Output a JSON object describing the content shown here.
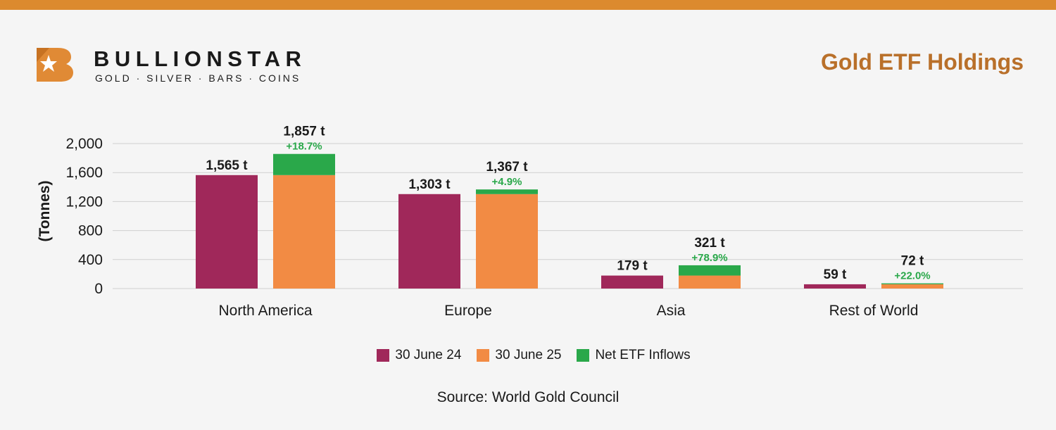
{
  "header": {
    "brand_name": "BULLIONSTAR",
    "brand_tagline": "GOLD · SILVER · BARS · COINS",
    "title": "Gold ETF Holdings"
  },
  "colors": {
    "top_bar": "#dc8a2e",
    "title": "#b9702a",
    "series_2024": "#a0285a",
    "series_2025": "#f28b44",
    "inflows": "#2aa84a",
    "pct_text": "#2aa84a"
  },
  "chart_data": {
    "type": "bar",
    "ylabel": "(Tonnes)",
    "ylim": [
      0,
      2000
    ],
    "yticks": [
      0,
      400,
      800,
      1200,
      1600,
      2000
    ],
    "ytick_labels": [
      "0",
      "400",
      "800",
      "1,200",
      "1,600",
      "2,000"
    ],
    "categories": [
      "North America",
      "Europe",
      "Asia",
      "Rest of World"
    ],
    "series": [
      {
        "name": "30 June 24",
        "values": [
          1565,
          1303,
          179,
          59
        ],
        "labels": [
          "1,565 t",
          "1,303 t",
          "179 t",
          "59 t"
        ]
      },
      {
        "name": "30 June 25",
        "values": [
          1565,
          1303,
          179,
          59
        ]
      },
      {
        "name": "Net ETF Inflows",
        "values": [
          292,
          64,
          142,
          13
        ]
      }
    ],
    "totals_2025": [
      1857,
      1367,
      321,
      72
    ],
    "total_labels_2025": [
      "1,857 t",
      "1,367 t",
      "321 t",
      "72 t"
    ],
    "change_labels": [
      "+18.7%",
      "+4.9%",
      "+78.9%",
      "+22.0%"
    ],
    "legend": [
      "30 June 24",
      "30 June 25",
      "Net ETF Inflows"
    ],
    "grid": true
  },
  "source": "Source: World Gold Council"
}
